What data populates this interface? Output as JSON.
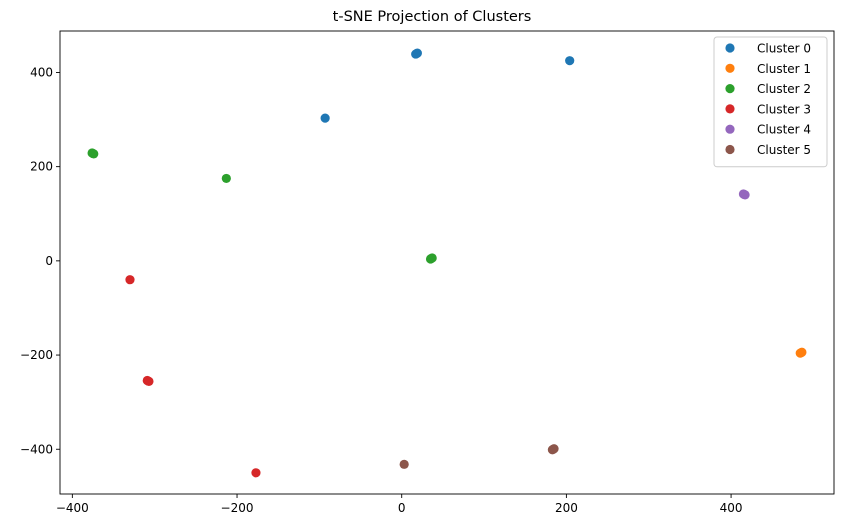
{
  "chart_data": {
    "type": "scatter",
    "title": "t-SNE Projection of Clusters",
    "xlabel": "",
    "ylabel": "",
    "xlim": [
      -415,
      525
    ],
    "ylim": [
      -495,
      488
    ],
    "xticks": [
      -400,
      -200,
      0,
      200,
      400
    ],
    "yticks": [
      -400,
      -200,
      0,
      200,
      400
    ],
    "grid": false,
    "legend_position": "top-right",
    "series": [
      {
        "name": "Cluster 0",
        "color": "#1f77b4",
        "points": [
          [
            18,
            440
          ],
          [
            19,
            441
          ],
          [
            17,
            439
          ],
          [
            204,
            425
          ],
          [
            -93,
            303
          ]
        ]
      },
      {
        "name": "Cluster 1",
        "color": "#ff7f0e",
        "points": [
          [
            485,
            -195
          ],
          [
            486,
            -194
          ],
          [
            484,
            -196
          ]
        ]
      },
      {
        "name": "Cluster 2",
        "color": "#2ca02c",
        "points": [
          [
            -375,
            228
          ],
          [
            -374,
            227
          ],
          [
            -376,
            229
          ],
          [
            -213,
            175
          ],
          [
            36,
            5
          ],
          [
            37,
            6
          ],
          [
            35,
            4
          ]
        ]
      },
      {
        "name": "Cluster 3",
        "color": "#d62728",
        "points": [
          [
            -330,
            -40
          ],
          [
            -308,
            -255
          ],
          [
            -307,
            -256
          ],
          [
            -309,
            -254
          ],
          [
            -177,
            -450
          ]
        ]
      },
      {
        "name": "Cluster 4",
        "color": "#9467bd",
        "points": [
          [
            416,
            141
          ],
          [
            417,
            140
          ],
          [
            415,
            142
          ]
        ]
      },
      {
        "name": "Cluster 5",
        "color": "#8c564b",
        "points": [
          [
            184,
            -400
          ],
          [
            185,
            -399
          ],
          [
            183,
            -401
          ],
          [
            3,
            -432
          ]
        ]
      }
    ]
  }
}
